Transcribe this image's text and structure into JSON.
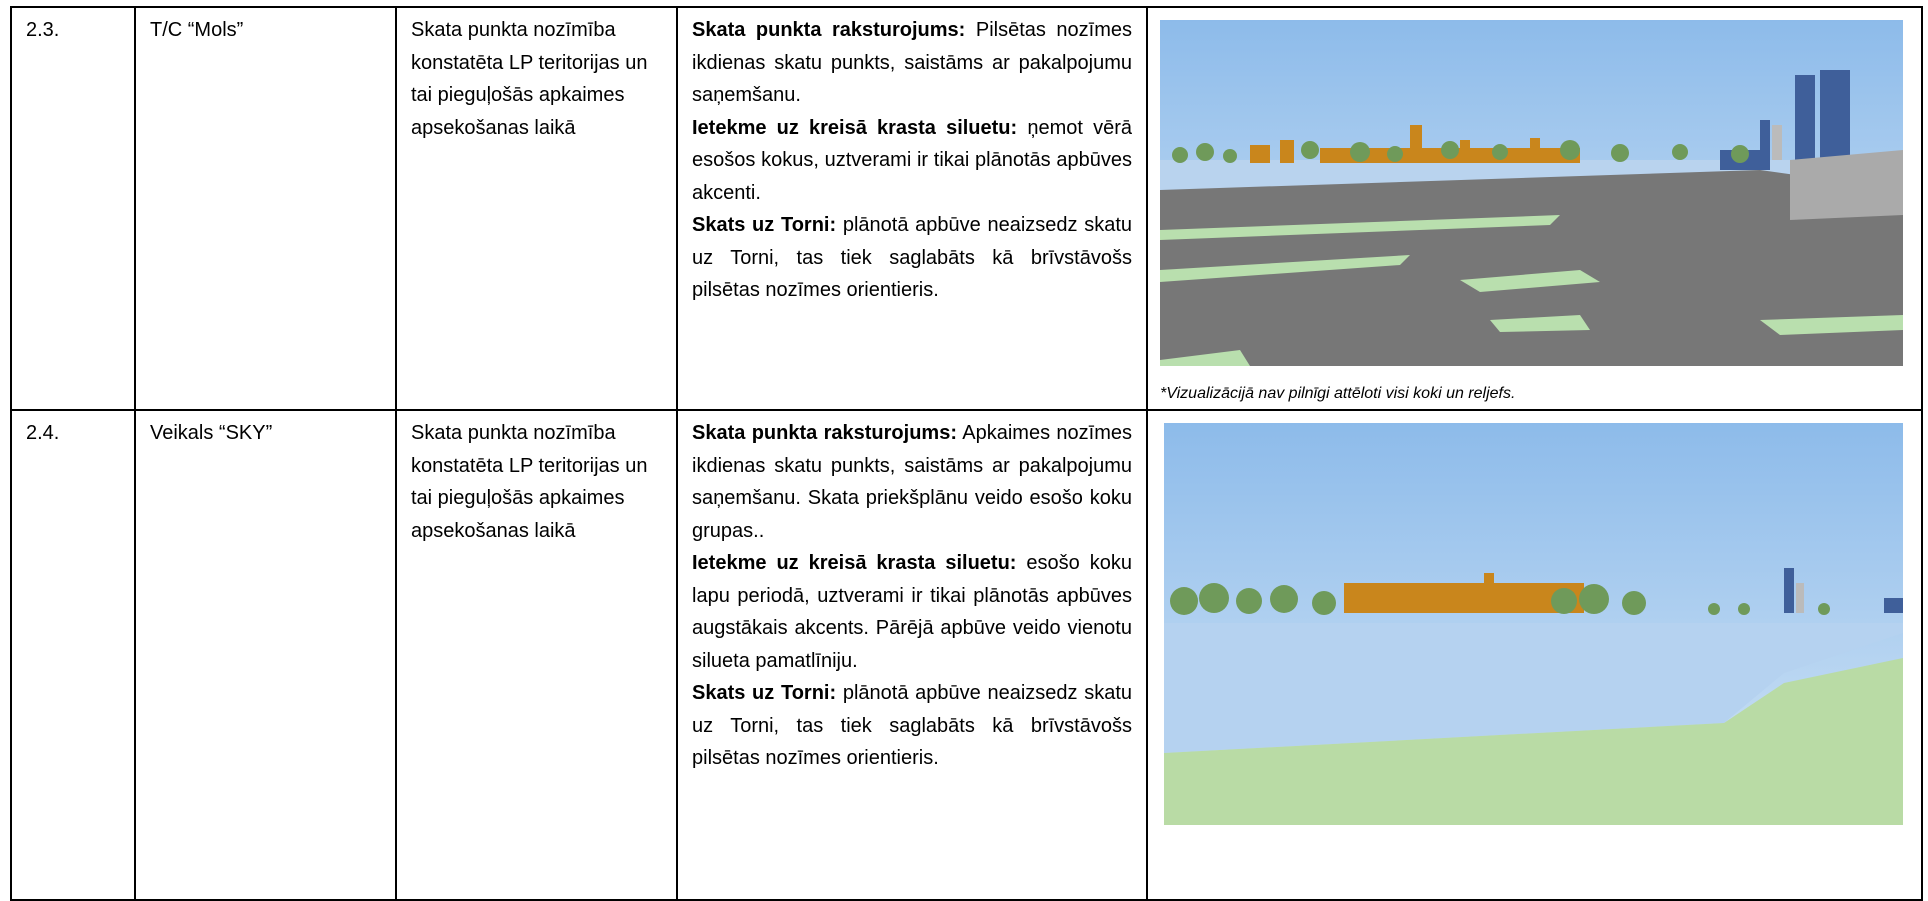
{
  "table": {
    "rows": [
      {
        "number": "2.3.",
        "name": "T/C “Mols”",
        "significance": "Skata punkta nozīmība konstatēta LP teritorijas un tai pieguļošās apkaimes apsekošanas laikā",
        "description": [
          {
            "label": "Skata punkta raksturojums:",
            "text": "Pilsētas nozīmes ikdienas skatu punkts, saistāms ar pakalpojumu saņemšanu."
          },
          {
            "label": "Ietekme uz kreisā krasta siluetu:",
            "text": "ņemot vērā esošos kokus, uztverami ir tikai plānotās apbūves akcenti."
          },
          {
            "label": "Skats uz Torni:",
            "text": "plānotā apbūve neaizsedz skatu uz Torni, tas tiek saglabāts kā brīvstāvošs pilsētas nozīmes orientieris."
          }
        ],
        "note": "*Vizualizācijā nav pilnīgi attēloti visi koki un reljefs."
      },
      {
        "number": "2.4.",
        "name": "Veikals “SKY”",
        "significance": "Skata punkta nozīmība konstatēta LP teritorijas un tai pieguļošās apkaimes apsekošanas laikā",
        "description": [
          {
            "label": "Skata punkta raksturojums:",
            "text": "Apkaimes nozīmes ikdienas skatu punkts, saistāms ar pakalpojumu saņemšanu. Skata priekšplānu veido esošo koku grupas.."
          },
          {
            "label": "Ietekme uz kreisā krasta siluetu:",
            "text": "esošo koku lapu periodā, uztverami ir tikai plānotās apbūves augstākais akcents. Pārējā apbūve veido vienotu silueta pamatlīniju."
          },
          {
            "label": "Skats uz Torni:",
            "text": "plānotā apbūve neaizsedz skatu uz Torni, tas tiek saglabāts kā brīvstāvošs pilsētas nozīmes orientieris."
          }
        ]
      }
    ]
  }
}
